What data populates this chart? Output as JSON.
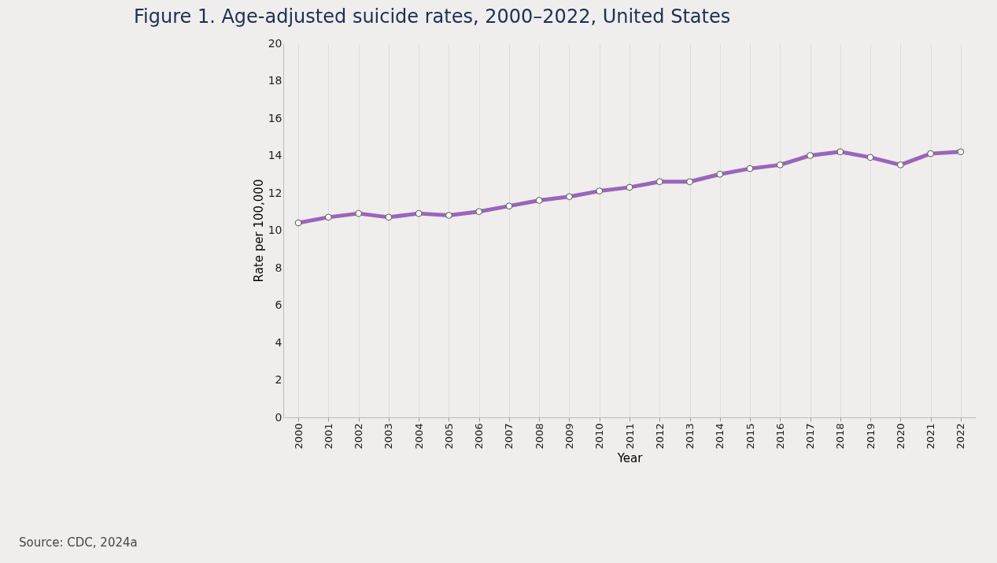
{
  "chart_data": {
    "type": "line",
    "title": "Figure 1. Age-adjusted suicide rates, 2000–2022, United States",
    "xlabel": "Year",
    "ylabel": "Rate per 100,000",
    "categories": [
      "2000",
      "2001",
      "2002",
      "2003",
      "2004",
      "2005",
      "2006",
      "2007",
      "2008",
      "2009",
      "2010",
      "2011",
      "2012",
      "2013",
      "2014",
      "2015",
      "2016",
      "2017",
      "2018",
      "2019",
      "2020",
      "2021",
      "2022"
    ],
    "series": [
      {
        "color": "#9966bb",
        "values": [
          10.4,
          10.7,
          10.9,
          10.7,
          10.9,
          10.8,
          11.0,
          11.3,
          11.6,
          11.8,
          12.1,
          12.3,
          12.6,
          12.6,
          13.0,
          13.3,
          13.5,
          14.0,
          14.2,
          13.9,
          13.5,
          14.1,
          14.2
        ]
      }
    ],
    "ylim": [
      0,
      20
    ],
    "yticks": [
      0,
      2,
      4,
      6,
      8,
      10,
      12,
      14,
      16,
      18,
      20
    ],
    "grid": "x",
    "marker": "circle",
    "line_style": "solid",
    "annotations": [
      "Source: CDC, 2024a"
    ]
  }
}
